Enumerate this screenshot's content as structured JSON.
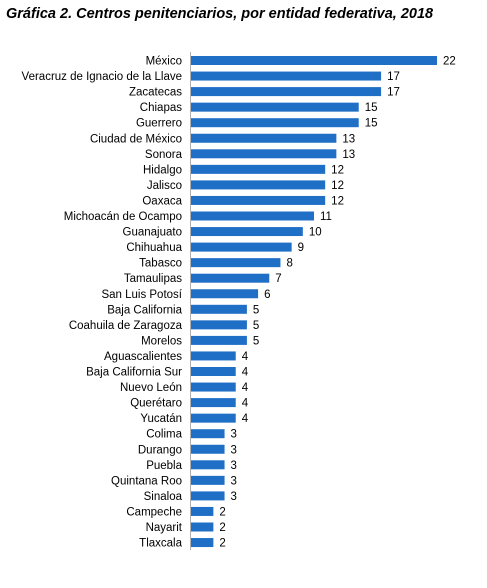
{
  "chart_data": {
    "type": "bar",
    "orientation": "horizontal",
    "title": "Gráfica 2. Centros penitenciarios, por entidad federativa, 2018",
    "xlabel": "",
    "ylabel": "",
    "xlim": [
      0,
      22
    ],
    "grid": false,
    "legend": "none",
    "bar_color": "#1f6fc6",
    "categories": [
      "México",
      "Veracruz de Ignacio de la Llave",
      "Zacatecas",
      "Chiapas",
      "Guerrero",
      "Ciudad de México",
      "Sonora",
      "Hidalgo",
      "Jalisco",
      "Oaxaca",
      "Michoacán de Ocampo",
      "Guanajuato",
      "Chihuahua",
      "Tabasco",
      "Tamaulipas",
      "San Luis Potosí",
      "Baja California",
      "Coahuila de Zaragoza",
      "Morelos",
      "Aguascalientes",
      "Baja California Sur",
      "Nuevo León",
      "Querétaro",
      "Yucatán",
      "Colima",
      "Durango",
      "Puebla",
      "Quintana Roo",
      "Sinaloa",
      "Campeche",
      "Nayarit",
      "Tlaxcala"
    ],
    "values": [
      22,
      17,
      17,
      15,
      15,
      13,
      13,
      12,
      12,
      12,
      11,
      10,
      9,
      8,
      7,
      6,
      5,
      5,
      5,
      4,
      4,
      4,
      4,
      4,
      3,
      3,
      3,
      3,
      3,
      2,
      2,
      2
    ]
  }
}
